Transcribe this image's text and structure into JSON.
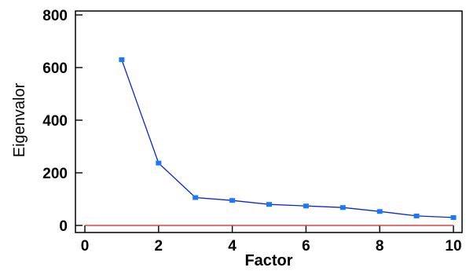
{
  "chart_data": {
    "type": "line",
    "xlabel": "Factor",
    "ylabel": "Eigenvalor",
    "xlim": [
      0,
      10
    ],
    "ylim": [
      0,
      800
    ],
    "x_ticks": [
      0,
      2,
      4,
      6,
      8,
      10
    ],
    "y_ticks": [
      0,
      200,
      400,
      600,
      800
    ],
    "grid": false,
    "series": [
      {
        "x": [
          1,
          2,
          3,
          4,
          5,
          6,
          7,
          8,
          9,
          10
        ],
        "values": [
          630,
          237,
          106,
          95,
          80,
          74,
          68,
          53,
          36,
          30
        ],
        "color": "#0a28d8",
        "marker_color": "#1a78ff"
      }
    ],
    "reference_line": {
      "y": 0,
      "color": "#e04040"
    }
  }
}
